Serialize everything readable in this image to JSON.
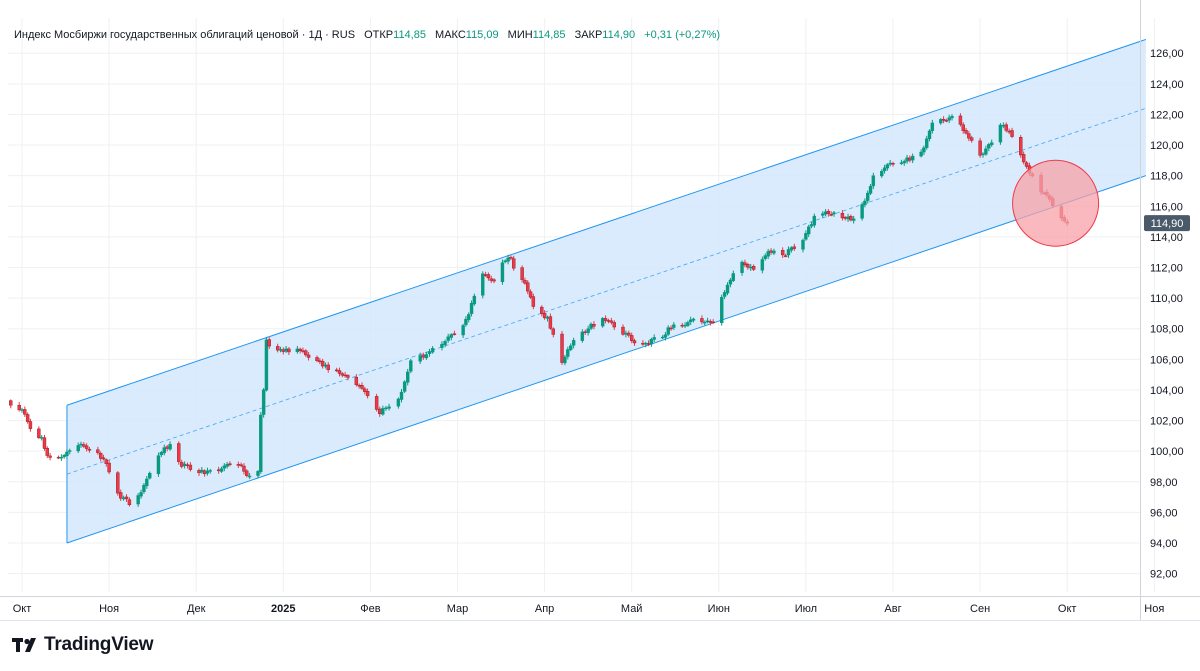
{
  "header": {
    "instrument": "Индекс Мосбиржи государственных облигаций ценовой · 1Д · RUS",
    "open_label": "ОТКР",
    "open_value": "114,85",
    "high_label": "МАКС",
    "high_value": "115,09",
    "low_label": "МИН",
    "low_value": "114,85",
    "close_label": "ЗАКР",
    "close_value": "114,90",
    "change": "+0,31 (+0,27%)"
  },
  "brand": {
    "name": "TradingView"
  },
  "colors": {
    "up": "#089981",
    "down": "#f23645",
    "channel_line": "#2196f3",
    "channel_fill": "#d2e8fb",
    "highlight": "#f7a1a8",
    "grid": "#eef0f3"
  },
  "chart_data": {
    "type": "candlestick",
    "x_axis": {
      "tick_labels": [
        "Окт",
        "Ноя",
        "Дек",
        "2025",
        "Фев",
        "Мар",
        "Апр",
        "Май",
        "Июн",
        "Июл",
        "Авг",
        "Сен",
        "Окт",
        "Ноя"
      ],
      "tick_dates": [
        "2024-10-01",
        "2024-11-01",
        "2024-12-01",
        "2025-01-01",
        "2025-02-01",
        "2025-03-01",
        "2025-04-01",
        "2025-05-01",
        "2025-06-01",
        "2025-07-01",
        "2025-08-01",
        "2025-09-01",
        "2025-10-01",
        "2025-11-01"
      ]
    },
    "y_axis": {
      "tick_labels": [
        "92,00",
        "94,00",
        "96,00",
        "98,00",
        "100,00",
        "102,00",
        "104,00",
        "106,00",
        "108,00",
        "110,00",
        "112,00",
        "114,00",
        "116,00",
        "118,00",
        "120,00",
        "122,00",
        "124,00",
        "126,00"
      ],
      "range": [
        90.8,
        128.3
      ],
      "last_price_label": "114,90",
      "last_price": 114.9
    },
    "grid": true,
    "price_path": [
      [
        "2024-09-27",
        103.0
      ],
      [
        "2024-10-01",
        102.6
      ],
      [
        "2024-10-04",
        101.6
      ],
      [
        "2024-10-08",
        100.8
      ],
      [
        "2024-10-10",
        99.8
      ],
      [
        "2024-10-14",
        99.5
      ],
      [
        "2024-10-17",
        100.1
      ],
      [
        "2024-10-22",
        100.3
      ],
      [
        "2024-10-28",
        99.9
      ],
      [
        "2024-10-31",
        99.2
      ],
      [
        "2024-11-04",
        97.1
      ],
      [
        "2024-11-08",
        96.6
      ],
      [
        "2024-11-12",
        97.4
      ],
      [
        "2024-11-18",
        99.7
      ],
      [
        "2024-11-22",
        100.5
      ],
      [
        "2024-11-26",
        99.1
      ],
      [
        "2024-12-02",
        98.6
      ],
      [
        "2024-12-06",
        98.7
      ],
      [
        "2024-12-11",
        99.0
      ],
      [
        "2024-12-16",
        99.1
      ],
      [
        "2024-12-20",
        98.3
      ],
      [
        "2024-12-23",
        98.8
      ],
      [
        "2024-12-24",
        102.4
      ],
      [
        "2024-12-25",
        104.0
      ],
      [
        "2024-12-26",
        107.3
      ],
      [
        "2024-12-28",
        106.4
      ],
      [
        "2025-01-06",
        106.7
      ],
      [
        "2025-01-13",
        105.9
      ],
      [
        "2025-01-20",
        105.1
      ],
      [
        "2025-01-27",
        104.5
      ],
      [
        "2025-01-31",
        103.5
      ],
      [
        "2025-02-04",
        102.6
      ],
      [
        "2025-02-10",
        103.3
      ],
      [
        "2025-02-14",
        105.8
      ],
      [
        "2025-02-19",
        106.3
      ],
      [
        "2025-02-24",
        107.0
      ],
      [
        "2025-02-28",
        107.6
      ],
      [
        "2025-03-04",
        108.5
      ],
      [
        "2025-03-10",
        111.6
      ],
      [
        "2025-03-14",
        111.2
      ],
      [
        "2025-03-19",
        112.8
      ],
      [
        "2025-03-21",
        112.1
      ],
      [
        "2025-03-25",
        110.9
      ],
      [
        "2025-03-28",
        109.6
      ],
      [
        "2025-04-02",
        108.6
      ],
      [
        "2025-04-07",
        105.9
      ],
      [
        "2025-04-11",
        107.4
      ],
      [
        "2025-04-16",
        108.0
      ],
      [
        "2025-04-21",
        108.7
      ],
      [
        "2025-04-25",
        108.2
      ],
      [
        "2025-04-30",
        107.4
      ],
      [
        "2025-05-05",
        106.9
      ],
      [
        "2025-05-12",
        107.6
      ],
      [
        "2025-05-16",
        108.3
      ],
      [
        "2025-05-21",
        108.4
      ],
      [
        "2025-05-27",
        108.6
      ],
      [
        "2025-05-30",
        108.4
      ],
      [
        "2025-06-03",
        110.5
      ],
      [
        "2025-06-09",
        112.4
      ],
      [
        "2025-06-13",
        111.9
      ],
      [
        "2025-06-18",
        113.2
      ],
      [
        "2025-06-24",
        112.9
      ],
      [
        "2025-06-30",
        113.8
      ],
      [
        "2025-07-04",
        115.2
      ],
      [
        "2025-07-09",
        115.6
      ],
      [
        "2025-07-15",
        115.3
      ],
      [
        "2025-07-18",
        115.2
      ],
      [
        "2025-07-22",
        116.5
      ],
      [
        "2025-07-25",
        117.9
      ],
      [
        "2025-07-30",
        118.6
      ],
      [
        "2025-08-04",
        119.0
      ],
      [
        "2025-08-08",
        119.2
      ],
      [
        "2025-08-12",
        119.8
      ],
      [
        "2025-08-15",
        121.3
      ],
      [
        "2025-08-19",
        121.7
      ],
      [
        "2025-08-22",
        121.9
      ],
      [
        "2025-08-26",
        121.1
      ],
      [
        "2025-08-29",
        120.3
      ],
      [
        "2025-09-01",
        119.3
      ],
      [
        "2025-09-04",
        119.9
      ],
      [
        "2025-09-08",
        121.4
      ],
      [
        "2025-09-11",
        120.9
      ],
      [
        "2025-09-15",
        119.3
      ],
      [
        "2025-09-18",
        118.3
      ],
      [
        "2025-09-22",
        117.1
      ],
      [
        "2025-09-25",
        116.3
      ],
      [
        "2025-09-29",
        115.4
      ],
      [
        "2025-10-01",
        114.9
      ]
    ],
    "trend_channel": {
      "start": "2024-10-17",
      "end": "2025-10-29",
      "upper": [
        103.0,
        126.9
      ],
      "middle": [
        98.5,
        122.4
      ],
      "lower": [
        94.0,
        118.0
      ]
    },
    "highlight_circle": {
      "date": "2025-09-27",
      "price": 116.2
    }
  }
}
